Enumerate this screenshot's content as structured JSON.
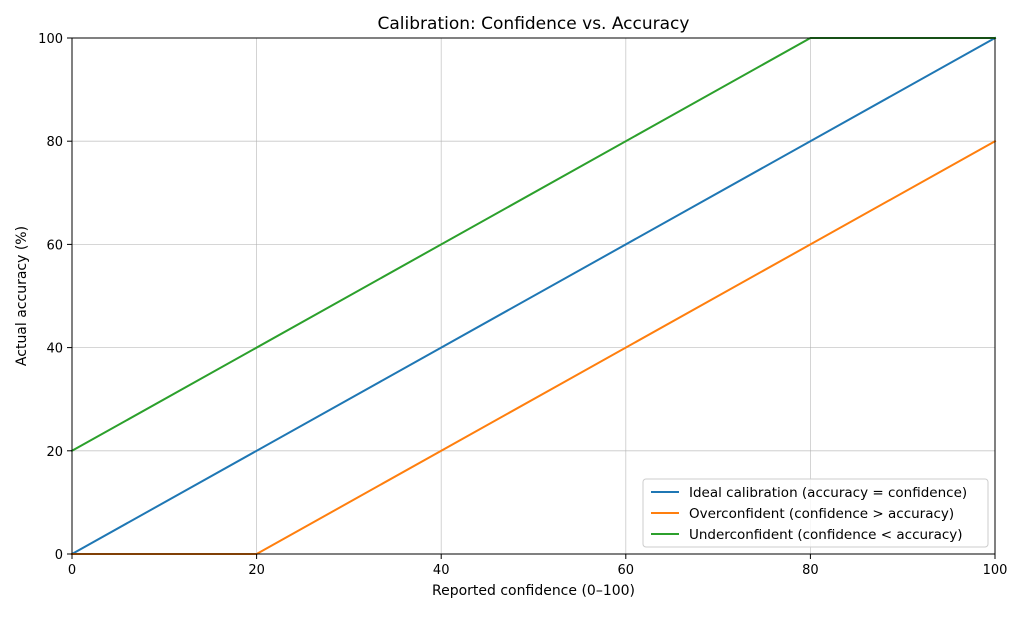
{
  "chart_data": {
    "type": "line",
    "title": "Calibration: Confidence vs. Accuracy",
    "xlabel": "Reported confidence (0–100)",
    "ylabel": "Actual accuracy (%)",
    "xlim": [
      0,
      100
    ],
    "ylim": [
      0,
      100
    ],
    "xticks": [
      0,
      20,
      40,
      60,
      80,
      100
    ],
    "yticks": [
      0,
      20,
      40,
      60,
      80,
      100
    ],
    "grid": true,
    "legend_position": "bottom-right",
    "series": [
      {
        "name": "Ideal calibration (accuracy = confidence)",
        "color": "#1f77b4",
        "x": [
          0,
          100
        ],
        "y": [
          0,
          100
        ]
      },
      {
        "name": "Overconfident (confidence > accuracy)",
        "color": "#ff7f0e",
        "x": [
          0,
          20,
          100
        ],
        "y": [
          0,
          0,
          80
        ]
      },
      {
        "name": "Underconfident (confidence < accuracy)",
        "color": "#2ca02c",
        "x": [
          0,
          80,
          100
        ],
        "y": [
          20,
          100,
          100
        ]
      }
    ]
  }
}
